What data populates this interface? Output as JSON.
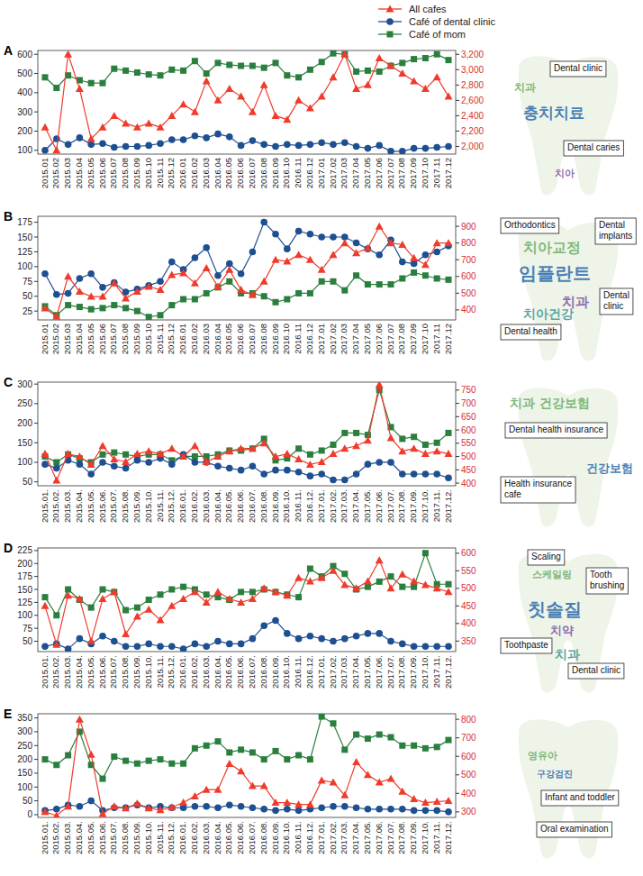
{
  "chart_data": [
    {
      "type": "line",
      "title": "A",
      "legend": "top-right",
      "grid": false,
      "categories": [
        "2015.01",
        "2015.02",
        "2015.03",
        "2015.04",
        "2015.05",
        "2015.06",
        "2015.07",
        "2015.08",
        "2015.09",
        "2015.10",
        "2015.11",
        "2015.12",
        "2016.01",
        "2016.02",
        "2016.03",
        "2016.04",
        "2016.05",
        "2016.06",
        "2016.07",
        "2016.08",
        "2016.09",
        "2016.10",
        "2016.11",
        "2016.12",
        "2017.01",
        "2017.02",
        "2017.03",
        "2017.04",
        "2017.05",
        "2017.06",
        "2017.07",
        "2017.08",
        "2017.09",
        "2017.10",
        "2017.11",
        "2017.12"
      ],
      "ylim": [
        80,
        620
      ],
      "yticks": [
        100,
        200,
        300,
        400,
        500,
        600
      ],
      "y2lim": [
        1900,
        3250
      ],
      "y2ticks": [
        {
          "value": 2000,
          "label": "2,000"
        },
        {
          "value": 2200,
          "label": "2,200"
        },
        {
          "value": 2400,
          "label": "2,400"
        },
        {
          "value": 2600,
          "label": "2,600"
        },
        {
          "value": 2800,
          "label": "2,800"
        },
        {
          "value": 3000,
          "label": "3,000"
        },
        {
          "value": 3200,
          "label": "3,200"
        }
      ],
      "series": [
        {
          "name": "All cafes",
          "color": "#ef3b2c",
          "marker": "triangle",
          "axis": "y2",
          "values": [
            2250,
            1950,
            3200,
            2750,
            2100,
            2250,
            2400,
            2300,
            2250,
            2300,
            2250,
            2400,
            2550,
            2450,
            2850,
            2600,
            2750,
            2650,
            2450,
            2800,
            2400,
            2350,
            2600,
            2500,
            2650,
            2900,
            3200,
            2750,
            2800,
            3150,
            3050,
            2950,
            2850,
            2750,
            2900,
            2650
          ]
        },
        {
          "name": "Café of dental clinic",
          "color": "#1d4f91",
          "marker": "circle",
          "values": [
            100,
            160,
            130,
            165,
            130,
            135,
            115,
            120,
            120,
            125,
            135,
            155,
            155,
            175,
            165,
            185,
            170,
            125,
            150,
            130,
            120,
            130,
            125,
            130,
            140,
            130,
            140,
            120,
            110,
            125,
            95,
            95,
            110,
            110,
            115,
            120
          ]
        },
        {
          "name": "Café of mom",
          "color": "#2a7f3e",
          "marker": "square",
          "values": [
            480,
            425,
            490,
            465,
            450,
            450,
            525,
            515,
            505,
            495,
            490,
            520,
            515,
            565,
            500,
            555,
            545,
            540,
            540,
            530,
            555,
            490,
            480,
            520,
            560,
            605,
            600,
            510,
            515,
            510,
            540,
            555,
            575,
            580,
            600,
            570
          ]
        }
      ],
      "word_cloud": [
        "치과",
        "충치치료",
        "치아"
      ],
      "annotations": [
        "Dental clinic",
        "Dental caries"
      ]
    },
    {
      "type": "line",
      "title": "B",
      "grid": false,
      "categories": [
        "2015.01",
        "2015.02",
        "2015.03",
        "2015.04",
        "2015.05",
        "2015.06",
        "2015.07",
        "2015.08",
        "2015.09",
        "2015.10",
        "2015.11",
        "2015.12",
        "2016.01",
        "2016.02",
        "2016.03",
        "2016.04",
        "2016.05",
        "2016.06",
        "2016.07",
        "2016.08",
        "2016.09",
        "2016.10",
        "2016.11",
        "2016.12",
        "2017.01",
        "2017.02",
        "2017.03",
        "2017.04",
        "2017.05",
        "2017.06",
        "2017.07",
        "2017.08",
        "2017.09",
        "2017.10",
        "2017.11",
        "2017.12"
      ],
      "ylim": [
        10,
        185
      ],
      "yticks": [
        25,
        50,
        75,
        100,
        125,
        150,
        175
      ],
      "y2lim": [
        340,
        960
      ],
      "y2ticks": [
        400,
        500,
        600,
        700,
        800,
        900
      ],
      "series": [
        {
          "name": "All cafes",
          "color": "#ef3b2c",
          "marker": "triangle",
          "axis": "y2",
          "values": [
            410,
            360,
            600,
            510,
            480,
            480,
            560,
            470,
            510,
            540,
            520,
            610,
            620,
            560,
            650,
            540,
            640,
            520,
            490,
            570,
            700,
            690,
            730,
            700,
            640,
            730,
            800,
            740,
            770,
            900,
            800,
            790,
            710,
            670,
            800,
            800
          ]
        },
        {
          "name": "Café of dental clinic",
          "color": "#1d4f91",
          "marker": "circle",
          "values": [
            88,
            53,
            55,
            80,
            88,
            65,
            73,
            57,
            62,
            68,
            75,
            108,
            95,
            115,
            132,
            85,
            105,
            88,
            125,
            175,
            155,
            130,
            160,
            155,
            150,
            150,
            150,
            140,
            130,
            120,
            145,
            108,
            105,
            120,
            125,
            135
          ]
        },
        {
          "name": "Café of mom",
          "color": "#2a7f3e",
          "marker": "square",
          "values": [
            33,
            18,
            35,
            32,
            28,
            30,
            35,
            30,
            25,
            15,
            18,
            35,
            45,
            45,
            55,
            65,
            75,
            55,
            55,
            50,
            40,
            45,
            55,
            55,
            75,
            75,
            60,
            85,
            70,
            70,
            70,
            80,
            90,
            85,
            80,
            78
          ]
        }
      ],
      "word_cloud": [
        "치아교정",
        "임플란트",
        "치과",
        "치아건강"
      ],
      "annotations": [
        "Orthodontics",
        "Dental implants",
        "Dental clinic",
        "Dental health"
      ]
    },
    {
      "type": "line",
      "title": "C",
      "grid": false,
      "categories": [
        "2015.01.",
        "2015.02.",
        "2015.03.",
        "2015.04.",
        "2015.05.",
        "2015.06.",
        "2015.07.",
        "2015.08.",
        "2015.09.",
        "2015.10.",
        "2015.11.",
        "2015.12.",
        "2016.01.",
        "2016.02.",
        "2016.03.",
        "2016.04.",
        "2016.05.",
        "2016.06.",
        "2016.07.",
        "2016.08.",
        "2016.09.",
        "2016.10.",
        "2016.11.",
        "2016.12.",
        "2017.01.",
        "2017.02.",
        "2017.03.",
        "2017.04.",
        "2017.05.",
        "2017.06.",
        "2017.07.",
        "2017.08.",
        "2017.09.",
        "2017.10.",
        "2017.11.",
        "2017.12."
      ],
      "ylim": [
        40,
        305
      ],
      "yticks": [
        50,
        100,
        150,
        200,
        250,
        300
      ],
      "y2lim": [
        390,
        780
      ],
      "y2ticks": [
        400,
        450,
        500,
        550,
        600,
        650,
        700,
        750
      ],
      "series": [
        {
          "name": "All cafes",
          "color": "#ef3b2c",
          "marker": "triangle",
          "axis": "y2",
          "values": [
            510,
            410,
            510,
            500,
            470,
            540,
            490,
            480,
            510,
            520,
            510,
            530,
            500,
            540,
            480,
            500,
            520,
            530,
            530,
            550,
            500,
            510,
            490,
            470,
            480,
            510,
            530,
            540,
            560,
            770,
            570,
            520,
            530,
            510,
            520,
            510
          ]
        },
        {
          "name": "Café of dental clinic",
          "color": "#1d4f91",
          "marker": "circle",
          "values": [
            95,
            85,
            105,
            95,
            70,
            100,
            90,
            85,
            105,
            100,
            110,
            95,
            120,
            100,
            100,
            90,
            85,
            80,
            90,
            70,
            80,
            80,
            75,
            65,
            70,
            55,
            55,
            70,
            95,
            100,
            100,
            70,
            70,
            70,
            70,
            60
          ]
        },
        {
          "name": "Café of mom",
          "color": "#2a7f3e",
          "marker": "square",
          "values": [
            115,
            100,
            120,
            110,
            100,
            120,
            125,
            120,
            115,
            120,
            120,
            105,
            115,
            115,
            115,
            120,
            130,
            130,
            135,
            160,
            105,
            110,
            135,
            120,
            130,
            145,
            175,
            175,
            170,
            285,
            190,
            160,
            165,
            145,
            150,
            175
          ]
        }
      ],
      "word_cloud": [
        "치과 건강보험",
        "건강보험"
      ],
      "annotations": [
        "Dental health insurance",
        "Health insurance cafe"
      ]
    },
    {
      "type": "line",
      "title": "D",
      "grid": false,
      "categories": [
        "2015.01.",
        "2015.02.",
        "2015.03.",
        "2015.04.",
        "2015.05.",
        "2015.06.",
        "2015.07.",
        "2015.08.",
        "2015.09.",
        "2015.10.",
        "2015.11.",
        "2015.12.",
        "2016.01.",
        "2016.02.",
        "2016.03.",
        "2016.04.",
        "2016.05.",
        "2016.06.",
        "2016.07.",
        "2016.08.",
        "2016.09.",
        "2016.10.",
        "2016.11.",
        "2016.12.",
        "2017.01.",
        "2017.02.",
        "2017.03.",
        "2017.04.",
        "2017.05.",
        "2017.06.",
        "2017.07.",
        "2017.08.",
        "2017.09.",
        "2017.10.",
        "2017.11.",
        "2017.12."
      ],
      "ylim": [
        30,
        230
      ],
      "yticks": [
        50,
        75,
        100,
        125,
        150,
        175,
        200,
        225
      ],
      "y2lim": [
        320,
        615
      ],
      "y2ticks": [
        350,
        400,
        450,
        500,
        550,
        600
      ],
      "series": [
        {
          "name": "All cafes",
          "color": "#ef3b2c",
          "marker": "triangle",
          "axis": "y2",
          "values": [
            450,
            340,
            480,
            470,
            350,
            470,
            490,
            370,
            420,
            440,
            410,
            450,
            470,
            490,
            460,
            490,
            470,
            460,
            470,
            500,
            490,
            480,
            530,
            520,
            530,
            550,
            510,
            500,
            520,
            580,
            500,
            540,
            520,
            510,
            500,
            490
          ]
        },
        {
          "name": "Café of dental clinic",
          "color": "#1d4f91",
          "marker": "circle",
          "values": [
            40,
            45,
            35,
            55,
            45,
            60,
            50,
            40,
            40,
            45,
            40,
            40,
            35,
            45,
            40,
            50,
            45,
            45,
            55,
            80,
            90,
            65,
            55,
            60,
            55,
            50,
            55,
            60,
            65,
            65,
            50,
            45,
            40,
            40,
            40,
            40
          ]
        },
        {
          "name": "Café of mom",
          "color": "#2a7f3e",
          "marker": "square",
          "values": [
            135,
            100,
            150,
            130,
            115,
            150,
            145,
            110,
            115,
            130,
            140,
            150,
            155,
            150,
            140,
            135,
            130,
            145,
            145,
            150,
            145,
            140,
            135,
            190,
            175,
            195,
            180,
            150,
            155,
            165,
            175,
            155,
            155,
            220,
            160,
            160
          ]
        }
      ],
      "word_cloud": [
        "스케일링",
        "칫솔질",
        "치약",
        "치과"
      ],
      "annotations": [
        "Scaling",
        "Tooth brushing",
        "Toothpaste",
        "Dental clinic"
      ]
    },
    {
      "type": "line",
      "title": "E",
      "grid": false,
      "categories": [
        "2015.01.",
        "2015.02.",
        "2015.03.",
        "2015.04.",
        "2015.05.",
        "2015.06.",
        "2015.07.",
        "2015.08.",
        "2015.09.",
        "2015.10.",
        "2015.11.",
        "2015.12.",
        "2016.01.",
        "2016.02.",
        "2016.03.",
        "2016.04.",
        "2016.05.",
        "2016.06.",
        "2016.07.",
        "2016.08.",
        "2016.09.",
        "2016.10.",
        "2016.11.",
        "2016.12.",
        "2017.01.",
        "2017.02.",
        "2017.03.",
        "2017.04.",
        "2017.05.",
        "2017.06.",
        "2017.07.",
        "2017.08.",
        "2017.09.",
        "2017.10.",
        "2017.11.",
        "2017.12."
      ],
      "ylim": [
        -10,
        365
      ],
      "yticks": [
        0,
        50,
        100,
        150,
        200,
        250,
        300,
        350
      ],
      "y2lim": [
        270,
        830
      ],
      "y2ticks": [
        300,
        400,
        500,
        600,
        700,
        800
      ],
      "series": [
        {
          "name": "All cafes",
          "color": "#ef3b2c",
          "marker": "triangle",
          "axis": "y2",
          "values": [
            300,
            280,
            330,
            800,
            610,
            290,
            330,
            320,
            345,
            320,
            310,
            325,
            350,
            385,
            420,
            420,
            560,
            520,
            440,
            440,
            350,
            350,
            340,
            340,
            470,
            460,
            390,
            570,
            500,
            460,
            480,
            410,
            370,
            350,
            355,
            360
          ]
        },
        {
          "name": "Café of dental clinic",
          "color": "#1d4f91",
          "marker": "circle",
          "values": [
            15,
            20,
            35,
            30,
            50,
            15,
            25,
            25,
            35,
            25,
            30,
            25,
            25,
            30,
            30,
            25,
            35,
            30,
            25,
            20,
            15,
            20,
            15,
            20,
            25,
            30,
            30,
            25,
            20,
            20,
            20,
            20,
            15,
            15,
            15,
            10
          ]
        },
        {
          "name": "Café of mom",
          "color": "#2a7f3e",
          "marker": "square",
          "values": [
            200,
            180,
            215,
            300,
            180,
            130,
            210,
            195,
            185,
            195,
            200,
            185,
            185,
            240,
            250,
            265,
            225,
            235,
            225,
            200,
            230,
            200,
            215,
            200,
            355,
            330,
            235,
            290,
            275,
            290,
            280,
            250,
            250,
            240,
            245,
            270
          ]
        }
      ],
      "word_cloud": [
        "영유아",
        "구강검진"
      ],
      "annotations": [
        "Infant and toddler",
        "Oral examination"
      ]
    }
  ]
}
